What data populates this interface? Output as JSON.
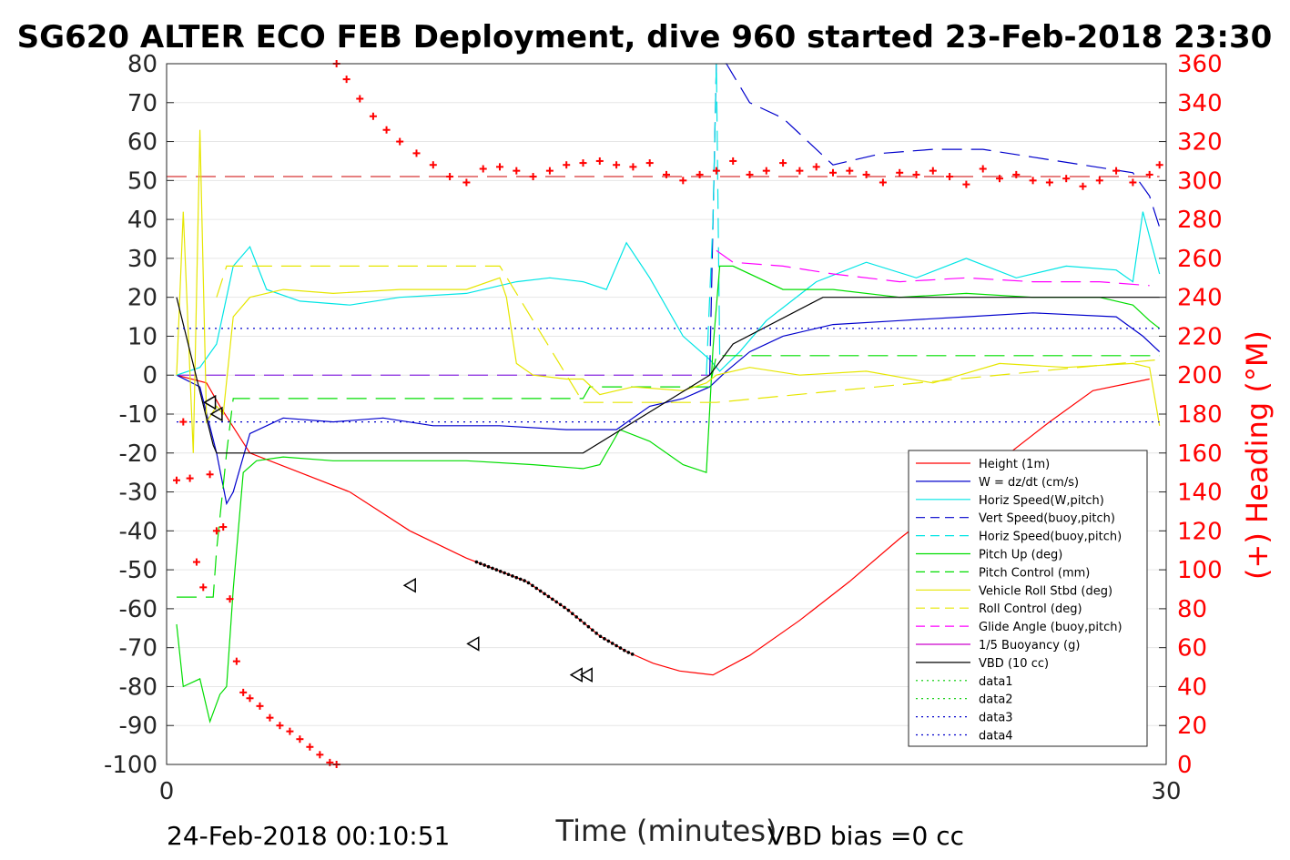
{
  "chart_data": {
    "type": "line",
    "title": "SG620 ALTER ECO FEB Deployment, dive 960 started 23-Feb-2018 23:30",
    "xlabel": "Time (minutes)",
    "ylabel_right": "(+) Heading (°M)",
    "footer_left": "24-Feb-2018 00:10:51",
    "footer_right": "VBD bias =0 cc",
    "xlim": [
      0,
      30
    ],
    "ylim": [
      -100,
      80
    ],
    "ylim_right": [
      0,
      360
    ],
    "x_ticks": [
      "0",
      "30"
    ],
    "y_ticks": [
      "80",
      "70",
      "60",
      "50",
      "40",
      "30",
      "20",
      "10",
      "0",
      "-10",
      "-20",
      "-30",
      "-40",
      "-50",
      "-60",
      "-70",
      "-80",
      "-90",
      "-100"
    ],
    "y_right_ticks": [
      "360",
      "340",
      "320",
      "300",
      "280",
      "260",
      "240",
      "220",
      "200",
      "180",
      "160",
      "140",
      "120",
      "100",
      "80",
      "60",
      "40",
      "20",
      "0"
    ],
    "legend_position": "lower-right",
    "grid": true,
    "series": [
      {
        "name": "Height (1m)",
        "color": "#ff0000",
        "style": "solid",
        "x": [
          0.3,
          1.2,
          1.6,
          2.5,
          4.0,
          5.5,
          7.3,
          9.0,
          10.8,
          12.0,
          13.0,
          13.8,
          14.6,
          15.4,
          16.4,
          17.5,
          19.0,
          20.5,
          22.0,
          23.5,
          25.0,
          26.5,
          27.8,
          29.5
        ],
        "values": [
          0,
          -2,
          -8,
          -20,
          -25,
          -30,
          -40,
          -47,
          -53,
          -60,
          -67,
          -71,
          -74,
          -76,
          -77,
          -72,
          -63,
          -53,
          -42,
          -32,
          -22,
          -12,
          -4,
          -1
        ]
      },
      {
        "name": "W = dz/dt (cm/s)",
        "color": "#0000cc",
        "style": "solid",
        "x": [
          0.3,
          1.0,
          1.5,
          1.8,
          2.0,
          2.5,
          3.5,
          5.0,
          6.5,
          8.0,
          10.0,
          12.0,
          13.5,
          14.5,
          15.5,
          16.3,
          16.8,
          17.5,
          18.5,
          20.0,
          22.0,
          24.0,
          26.0,
          28.5,
          29.3,
          29.8
        ],
        "values": [
          0,
          -3,
          -20,
          -33,
          -30,
          -15,
          -11,
          -12,
          -11,
          -13,
          -13,
          -14,
          -14,
          -8,
          -6,
          -3,
          1,
          6,
          10,
          13,
          14,
          15,
          16,
          15,
          10,
          6
        ]
      },
      {
        "name": "Horiz Speed(W,pitch)",
        "color": "#00e5e5",
        "style": "solid",
        "x": [
          0.3,
          1.0,
          1.5,
          2.0,
          2.5,
          3.0,
          4.0,
          5.5,
          7.0,
          9.0,
          10.5,
          11.5,
          12.5,
          13.2,
          13.8,
          14.5,
          15.5,
          16.3,
          16.6,
          17.2,
          18.0,
          19.5,
          21.0,
          22.5,
          24.0,
          25.5,
          27.0,
          28.5,
          29.0,
          29.3,
          29.8
        ],
        "values": [
          0,
          2,
          8,
          28,
          33,
          22,
          19,
          18,
          20,
          21,
          24,
          25,
          24,
          22,
          34,
          25,
          10,
          4,
          1,
          6,
          14,
          24,
          29,
          25,
          30,
          25,
          28,
          27,
          24,
          42,
          26
        ]
      },
      {
        "name": "Vert Speed(buoy,pitch)",
        "color": "#0000cc",
        "style": "dashed",
        "x": [
          16.3,
          16.5,
          16.8,
          17.5,
          18.5,
          19.0,
          20.0,
          21.5,
          23.0,
          24.5,
          26.0,
          27.5,
          29.0,
          29.5,
          29.8
        ],
        "values": [
          0,
          80,
          80,
          70,
          66,
          62,
          54,
          57,
          58,
          58,
          56,
          54,
          52,
          46,
          38
        ]
      },
      {
        "name": "Horiz Speed(buoy,pitch)",
        "color": "#00e5e5",
        "style": "dashed",
        "x": [
          16.2,
          16.4,
          16.5,
          16.6
        ],
        "values": [
          0,
          40,
          80,
          5
        ]
      },
      {
        "name": "Pitch Up (deg)",
        "color": "#00dd00",
        "style": "solid",
        "x": [
          0.3,
          0.5,
          1.0,
          1.3,
          1.6,
          1.8,
          2.0,
          2.3,
          2.7,
          3.5,
          5.0,
          7.0,
          9.0,
          11.0,
          12.5,
          13.0,
          13.6,
          14.5,
          15.5,
          16.2,
          16.4,
          16.6,
          17.0,
          18.5,
          20.0,
          22.0,
          24.0,
          26.0,
          28.0,
          29.0,
          29.5,
          29.8
        ],
        "values": [
          -64,
          -80,
          -78,
          -89,
          -82,
          -80,
          -55,
          -25,
          -22,
          -21,
          -22,
          -22,
          -22,
          -23,
          -24,
          -23,
          -14,
          -17,
          -23,
          -25,
          7,
          28,
          28,
          22,
          22,
          20,
          21,
          20,
          20,
          18,
          14,
          12
        ]
      },
      {
        "name": "Pitch Control (mm)",
        "color": "#00dd00",
        "style": "dashed",
        "x": [
          0.3,
          1.4,
          1.5,
          1.8,
          2.0,
          12.5,
          12.7,
          16.3,
          16.5,
          29.8
        ],
        "values": [
          -57,
          -57,
          -45,
          -20,
          -6,
          -6,
          -3,
          -3,
          5,
          5
        ]
      },
      {
        "name": "Vehicle Roll Stbd (deg)",
        "color": "#e6e600",
        "style": "solid",
        "x": [
          0.3,
          0.5,
          0.8,
          1.0,
          1.2,
          1.5,
          1.7,
          2.0,
          2.5,
          3.5,
          5.0,
          7.0,
          9.0,
          10.0,
          10.2,
          10.5,
          11.0,
          12.0,
          12.5,
          13.0,
          14.0,
          15.5,
          16.2,
          16.5,
          17.5,
          19.0,
          21.0,
          23.0,
          25.0,
          27.0,
          29.0,
          29.5,
          29.8
        ],
        "values": [
          0,
          42,
          -20,
          63,
          -12,
          -8,
          -10,
          15,
          20,
          22,
          21,
          22,
          22,
          25,
          20,
          3,
          0,
          -1,
          -1,
          -5,
          -3,
          -4,
          -2,
          0,
          2,
          0,
          1,
          -2,
          3,
          2,
          3,
          2,
          -13
        ]
      },
      {
        "name": "Roll Control (deg)",
        "color": "#e6e600",
        "style": "dashed",
        "x": [
          1.5,
          1.8,
          2.0,
          7.0,
          9.5,
          10.0,
          12.5,
          16.5,
          29.8
        ],
        "values": [
          20,
          28,
          28,
          28,
          28,
          28,
          -7,
          -7,
          4
        ]
      },
      {
        "name": "Glide Angle (buoy,pitch)",
        "color": "#ff00ff",
        "style": "dashed",
        "x": [
          16.5,
          17.0,
          18.5,
          20.0,
          22.0,
          24.0,
          26.0,
          28.0,
          29.5
        ],
        "values": [
          32,
          29,
          28,
          26,
          24,
          25,
          24,
          24,
          23
        ]
      },
      {
        "name": "1/5 Buoyancy (g)",
        "color": "#cc00cc",
        "style": "solid",
        "x": [],
        "values": []
      },
      {
        "name": "VBD (10 cc)",
        "color": "#000000",
        "style": "solid",
        "x": [
          0.3,
          1.4,
          1.5,
          9.0,
          12.5,
          16.3,
          17.0,
          19.7,
          29.8
        ],
        "values": [
          20,
          -18,
          -20,
          -20,
          -20,
          0,
          8,
          20,
          20
        ]
      },
      {
        "name": "data1",
        "color": "#00cc00",
        "style": "dotted",
        "x": [],
        "values": []
      },
      {
        "name": "data2",
        "color": "#00cc00",
        "style": "dotted",
        "x": [],
        "values": []
      },
      {
        "name": "data3",
        "color": "#0000cc",
        "style": "dotted",
        "x": [
          0.3,
          29.8
        ],
        "values": [
          12,
          12
        ]
      },
      {
        "name": "data4",
        "color": "#0000cc",
        "style": "dotted",
        "x": [
          0.3,
          29.8
        ],
        "values": [
          -12,
          -12
        ]
      }
    ],
    "heading_series": {
      "axis": "right",
      "color": "#ff0000",
      "marker": "+",
      "x": [
        0.3,
        0.5,
        0.7,
        0.9,
        1.1,
        1.3,
        1.5,
        1.7,
        1.9,
        2.1,
        2.3,
        2.5,
        2.8,
        3.1,
        3.4,
        3.7,
        4.0,
        4.3,
        4.6,
        4.9,
        5.1,
        5.1,
        5.4,
        5.8,
        6.2,
        6.6,
        7.0,
        7.5,
        8.0,
        8.5,
        9.0,
        9.5,
        10.0,
        10.5,
        11.0,
        11.5,
        12.0,
        12.5,
        13.0,
        13.5,
        14.0,
        14.5,
        15.0,
        15.5,
        16.0,
        16.5,
        17.0,
        17.5,
        18.0,
        18.5,
        19.0,
        19.5,
        20.0,
        20.5,
        21.0,
        21.5,
        22.0,
        22.5,
        23.0,
        23.5,
        24.0,
        24.5,
        25.0,
        25.5,
        26.0,
        26.5,
        27.0,
        27.5,
        28.0,
        28.5,
        29.0,
        29.5,
        29.8
      ],
      "values": [
        146,
        176,
        147,
        104,
        91,
        149,
        120,
        122,
        85,
        53,
        37,
        34,
        30,
        24,
        20,
        17,
        13,
        9,
        5,
        1,
        0,
        360,
        352,
        342,
        333,
        326,
        320,
        314,
        308,
        302,
        299,
        306,
        307,
        305,
        302,
        305,
        308,
        309,
        310,
        308,
        307,
        309,
        303,
        300,
        303,
        305,
        310,
        303,
        305,
        309,
        305,
        307,
        304,
        305,
        303,
        299,
        304,
        303,
        305,
        302,
        298,
        306,
        301,
        303,
        300,
        299,
        301,
        297,
        300,
        305,
        299,
        303,
        308
      ]
    },
    "reference_lines": {
      "heading_target": {
        "axis": "right",
        "value": 302,
        "color": "#cc0000",
        "style": "dashed"
      },
      "pitch_control_zero": {
        "value": 0,
        "color": "#8a2be2",
        "style": "dashed",
        "x": [
          0.3,
          16.3
        ]
      }
    },
    "markers": {
      "triangles": {
        "x": [
          1.3,
          1.5,
          7.3,
          9.2,
          12.3,
          12.6
        ],
        "values": [
          -7,
          -10,
          -54,
          -69,
          -77,
          -77
        ]
      },
      "dots": {
        "x_range": [
          9.3,
          14.0
        ],
        "values_note": ""
      }
    }
  }
}
